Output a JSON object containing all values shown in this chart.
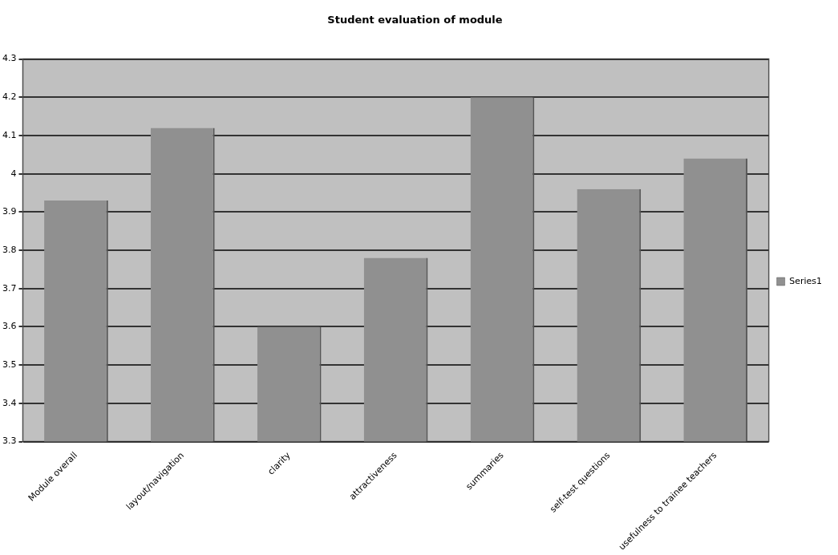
{
  "chart_data": {
    "type": "bar",
    "title": "Student evaluation of module",
    "categories": [
      "Module overall",
      "layout/navigation",
      "clarity",
      "attractiveness",
      "summaries",
      "self-test questions",
      "usefulness to trainee teachers"
    ],
    "series": [
      {
        "name": "Series1",
        "color": "#909090",
        "values": [
          3.93,
          4.12,
          3.6,
          3.78,
          4.2,
          3.96,
          4.04
        ]
      }
    ],
    "ylim": [
      3.3,
      4.3
    ],
    "yticks": [
      3.3,
      3.4,
      3.5,
      3.6,
      3.7,
      3.8,
      3.9,
      4,
      4.1,
      4.2,
      4.3
    ],
    "grid": "y",
    "legend": "right"
  }
}
